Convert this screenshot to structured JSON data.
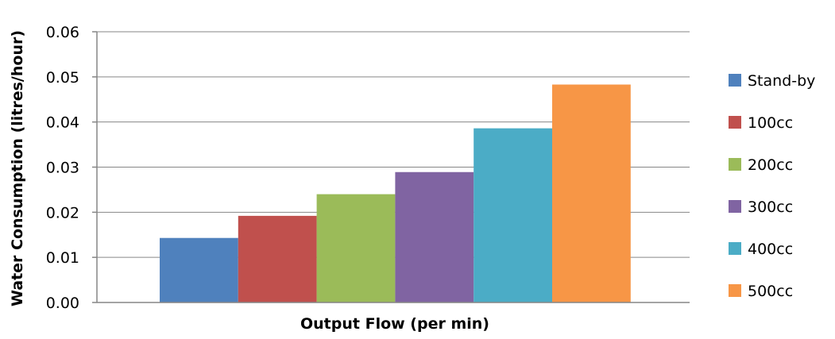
{
  "chart_data": {
    "type": "bar",
    "categories": [
      "Output Flow (per min)"
    ],
    "xlabel": "Output Flow (per min)",
    "ylabel": "Water Consumption (litres/hour)",
    "ylim": [
      0,
      0.06
    ],
    "yticks": [
      "0.00",
      "0.01",
      "0.02",
      "0.03",
      "0.04",
      "0.05",
      "0.06"
    ],
    "grid": true,
    "legend_position": "right",
    "series": [
      {
        "name": "Stand-by",
        "values": [
          0.0143
        ],
        "color": "#4F81BD"
      },
      {
        "name": "100cc",
        "values": [
          0.0192
        ],
        "color": "#C0504D"
      },
      {
        "name": "200cc",
        "values": [
          0.024
        ],
        "color": "#9BBB59"
      },
      {
        "name": "300cc",
        "values": [
          0.0289
        ],
        "color": "#8064A2"
      },
      {
        "name": "400cc",
        "values": [
          0.0386
        ],
        "color": "#4BACC6"
      },
      {
        "name": "500cc",
        "values": [
          0.0483
        ],
        "color": "#F79646"
      }
    ]
  }
}
